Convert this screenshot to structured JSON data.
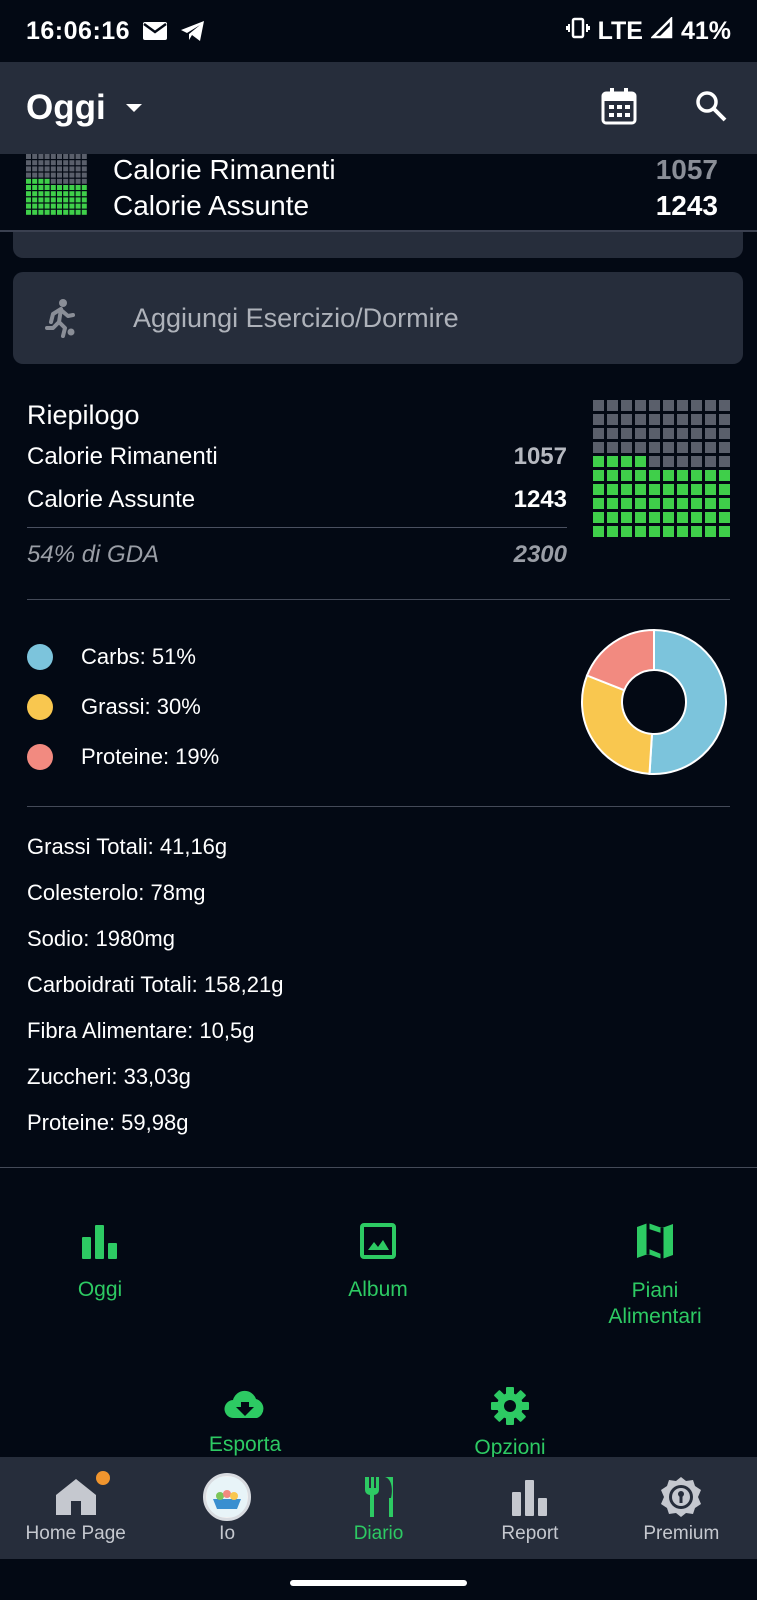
{
  "status_bar": {
    "time": "16:06:16",
    "network": "LTE",
    "battery": "41%",
    "icons": [
      "mail-icon",
      "telegram-icon",
      "vibrate-icon",
      "signal-icon",
      "battery-icon"
    ]
  },
  "app_bar": {
    "title": "Oggi",
    "icons": [
      "dropdown-caret-icon",
      "calendar-icon",
      "search-icon"
    ]
  },
  "sticky_summary": {
    "remaining_label": "Calorie Rimanenti",
    "remaining_value": "1057",
    "consumed_label": "Calorie Assunte",
    "consumed_value": "1243"
  },
  "exercise": {
    "label": "Aggiungi Esercizio/Dormire",
    "icon": "running-icon"
  },
  "summary": {
    "heading": "Riepilogo",
    "remaining_label": "Calorie Rimanenti",
    "remaining_value": "1057",
    "consumed_label": "Calorie Assunte",
    "consumed_value": "1243",
    "gda_label": "54% di GDA",
    "gda_value": "2300",
    "progress_fraction": 0.54
  },
  "macros": {
    "items": [
      {
        "label": "Carbs: 51%",
        "percent": 51,
        "color": "#7cc4dc"
      },
      {
        "label": "Grassi: 30%",
        "percent": 30,
        "color": "#f9c74f"
      },
      {
        "label": "Proteine: 19%",
        "percent": 19,
        "color": "#f28a80"
      }
    ]
  },
  "nutrients": [
    "Grassi Totali: 41,16g",
    "Colesterolo: 78mg",
    "Sodio: 1980mg",
    "Carboidrati Totali: 158,21g",
    "Fibra Alimentare: 10,5g",
    "Zuccheri: 33,03g",
    "Proteine: 59,98g"
  ],
  "shortcuts": [
    {
      "label": "Oggi",
      "icon": "bar-chart-icon"
    },
    {
      "label": "Album",
      "icon": "image-icon"
    },
    {
      "label": "Piani\nAlimentari",
      "icon": "map-icon"
    },
    {
      "label": "Esporta",
      "icon": "cloud-download-icon"
    },
    {
      "label": "Opzioni",
      "icon": "gear-icon"
    }
  ],
  "bottom_nav": [
    {
      "label": "Home Page",
      "icon": "home-icon",
      "badge": true
    },
    {
      "label": "Io",
      "icon": "avatar"
    },
    {
      "label": "Diario",
      "icon": "fork-knife-icon",
      "active": true
    },
    {
      "label": "Report",
      "icon": "bar-chart-icon"
    },
    {
      "label": "Premium",
      "icon": "premium-badge-icon"
    }
  ],
  "colors": {
    "accent_green": "#2dca63",
    "grid_filled": "#3fcf4a",
    "grid_empty": "#5a5f6b",
    "surface": "#262d3b",
    "background": "#030914",
    "badge": "#f0952e"
  }
}
